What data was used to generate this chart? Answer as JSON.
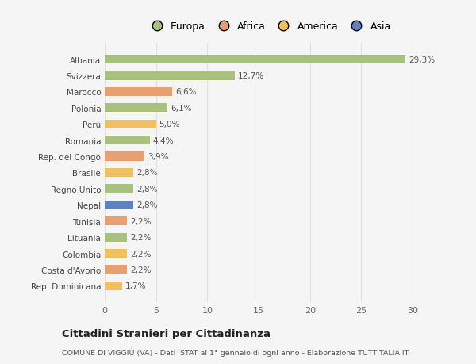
{
  "categories": [
    "Albania",
    "Svizzera",
    "Marocco",
    "Polonia",
    "Perù",
    "Romania",
    "Rep. del Congo",
    "Brasile",
    "Regno Unito",
    "Nepal",
    "Tunisia",
    "Lituania",
    "Colombia",
    "Costa d'Avorio",
    "Rep. Dominicana"
  ],
  "values": [
    29.3,
    12.7,
    6.6,
    6.1,
    5.0,
    4.4,
    3.9,
    2.8,
    2.8,
    2.8,
    2.2,
    2.2,
    2.2,
    2.2,
    1.7
  ],
  "labels": [
    "29,3%",
    "12,7%",
    "6,6%",
    "6,1%",
    "5,0%",
    "4,4%",
    "3,9%",
    "2,8%",
    "2,8%",
    "2,8%",
    "2,2%",
    "2,2%",
    "2,2%",
    "2,2%",
    "1,7%"
  ],
  "bar_colors": [
    "#a8c080",
    "#a8c080",
    "#e8a070",
    "#a8c080",
    "#f0c060",
    "#a8c080",
    "#e8a070",
    "#f0c060",
    "#a8c080",
    "#6080c0",
    "#e8a070",
    "#a8c080",
    "#f0c060",
    "#e8a070",
    "#f0c060"
  ],
  "legend_labels": [
    "Europa",
    "Africa",
    "America",
    "Asia"
  ],
  "legend_colors": [
    "#a8c080",
    "#e8a070",
    "#f0c060",
    "#6080c0"
  ],
  "title": "Cittadini Stranieri per Cittadinanza",
  "subtitle": "COMUNE DI VIGGIÙ (VA) - Dati ISTAT al 1° gennaio di ogni anno - Elaborazione TUTTITALIA.IT",
  "xlim": [
    0,
    32
  ],
  "xticks": [
    0,
    5,
    10,
    15,
    20,
    25,
    30
  ],
  "background_color": "#f5f5f5",
  "grid_color": "#e0e0e0"
}
